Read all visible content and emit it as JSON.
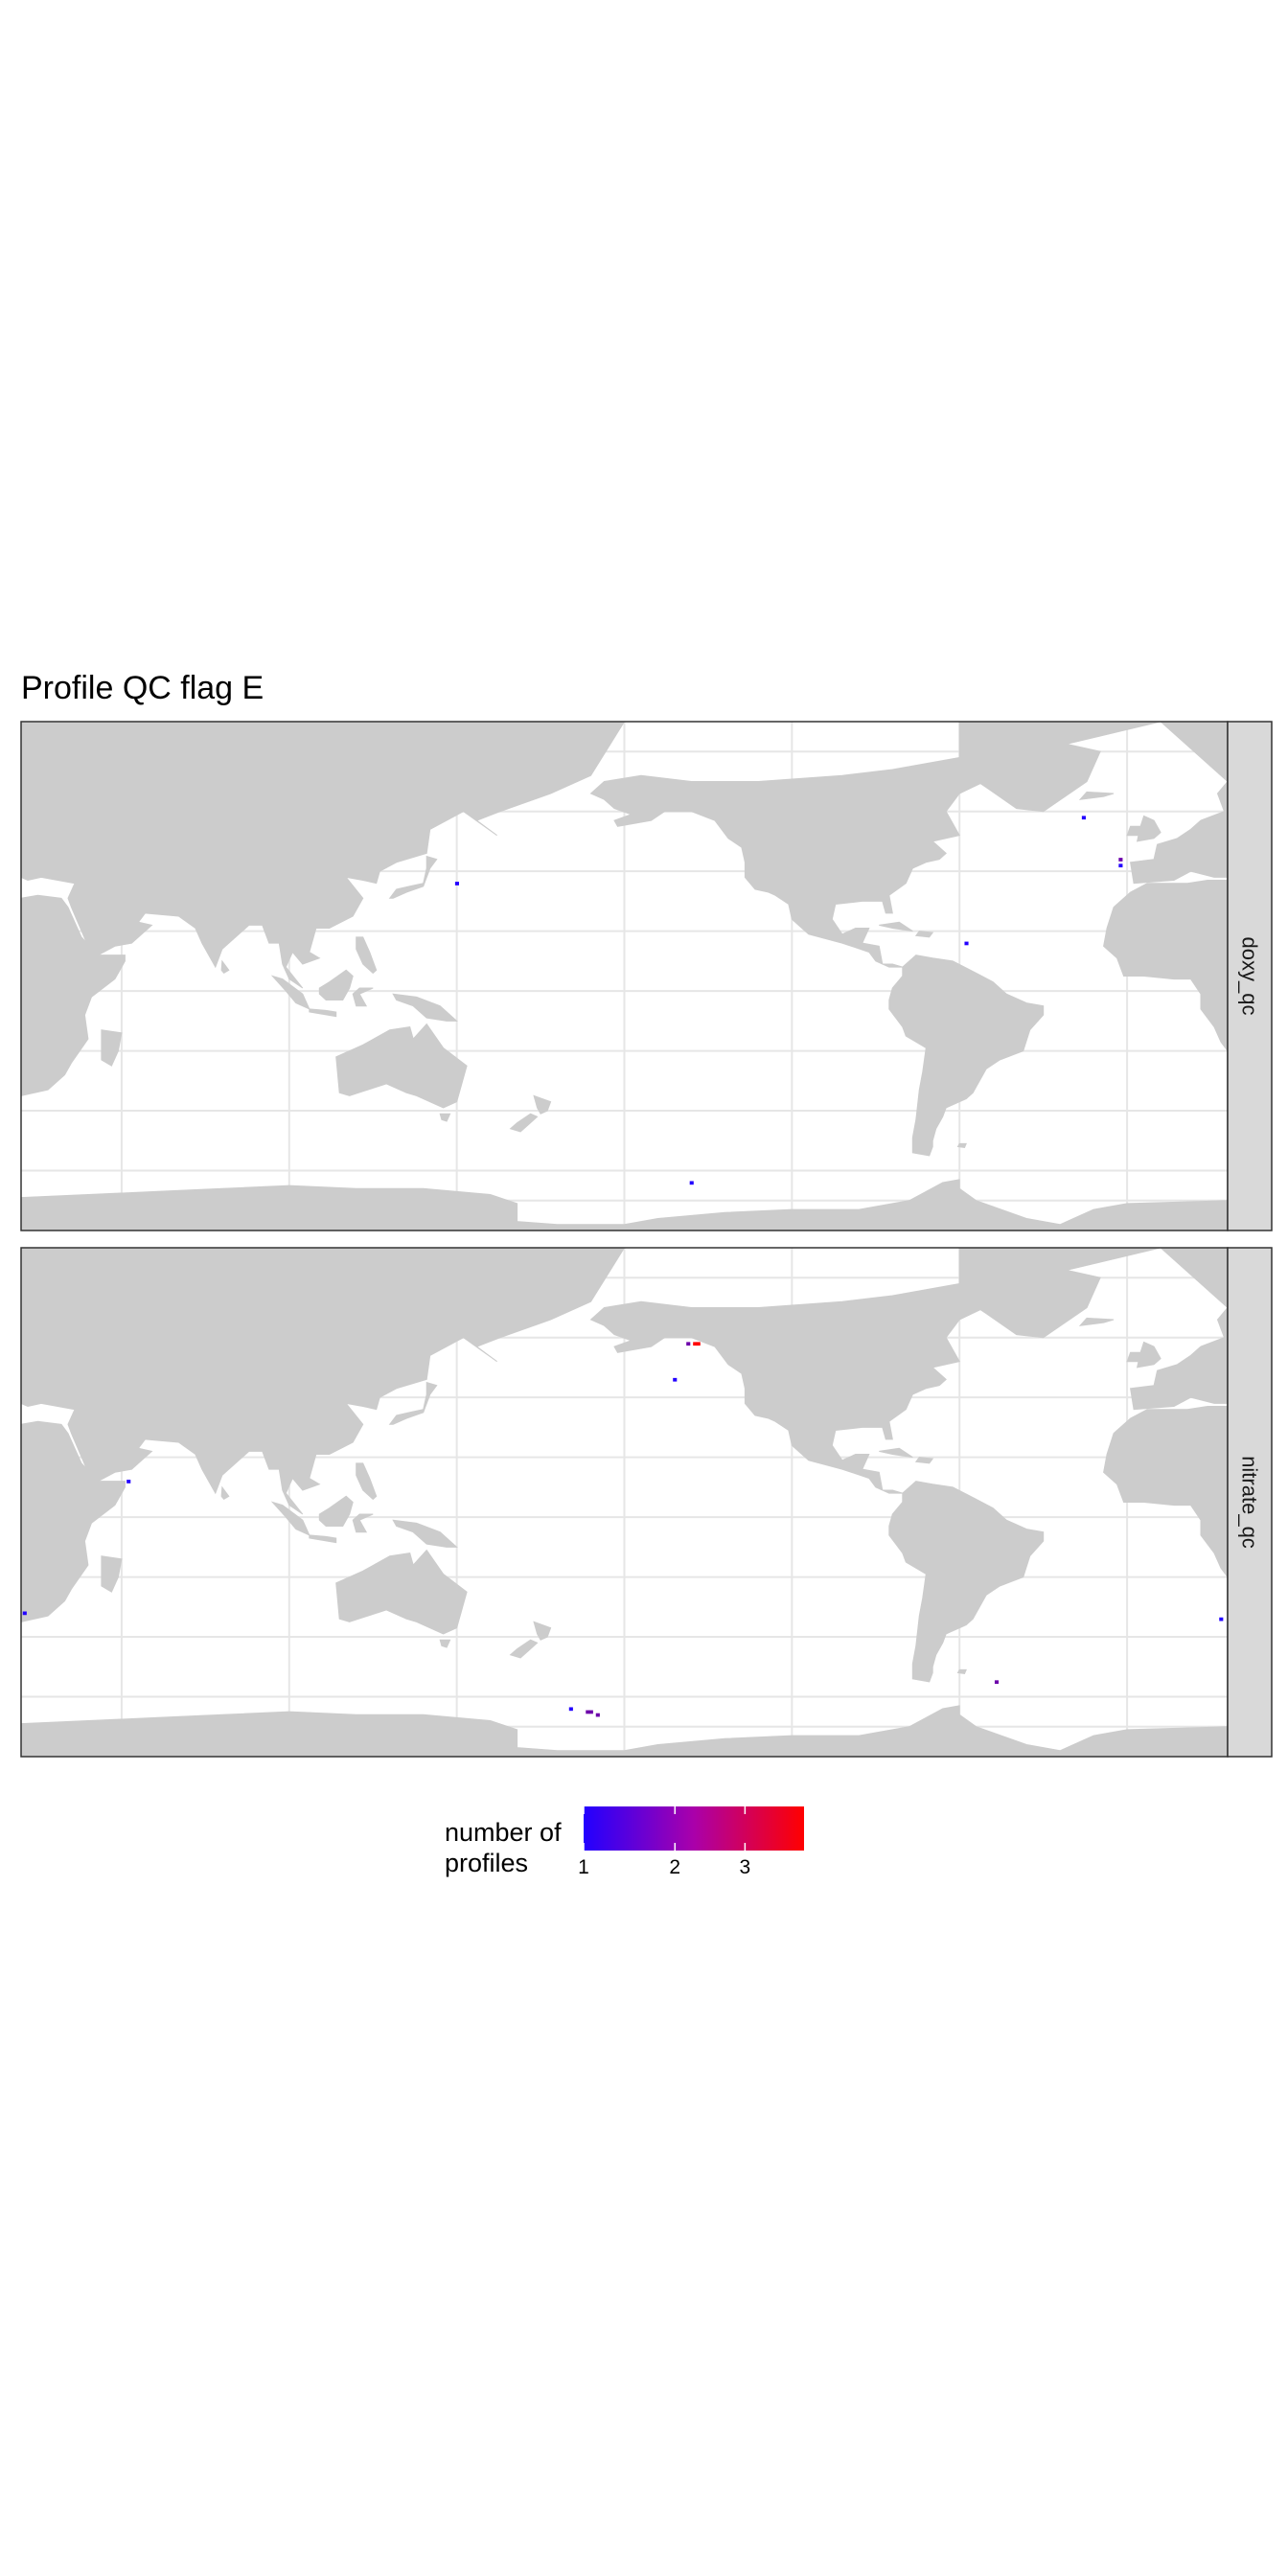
{
  "chart_data": {
    "type": "heatmap",
    "title": "Profile QC flag E",
    "subtitle": "",
    "xlabel": "",
    "ylabel": "",
    "x_range": [
      20,
      380
    ],
    "y_range": [
      -80,
      90
    ],
    "grid": true,
    "legend_position": "bottom",
    "legend": {
      "title_lines": [
        "number of",
        "profiles"
      ],
      "colors": [
        "#2200ff",
        "#ff0000"
      ],
      "min": 1,
      "max": 4,
      "ticks": [
        1,
        2,
        3
      ]
    },
    "panels": [
      {
        "strip_label": "doxy_qc",
        "cells": [
          {
            "lon": 150,
            "lat": 36,
            "count": 1
          },
          {
            "lon": 337,
            "lat": 58,
            "count": 1
          },
          {
            "lon": 348,
            "lat": 42,
            "count": 1
          },
          {
            "lon": 348,
            "lat": 44,
            "count": 2
          },
          {
            "lon": 302,
            "lat": 16,
            "count": 1
          },
          {
            "lon": 220,
            "lat": -64,
            "count": 1
          }
        ]
      },
      {
        "strip_label": "nitrate_qc",
        "cells": [
          {
            "lon": 219,
            "lat": 58,
            "count": 2
          },
          {
            "lon": 221,
            "lat": 58,
            "count": 4
          },
          {
            "lon": 222,
            "lat": 58,
            "count": 4
          },
          {
            "lon": 215,
            "lat": 46,
            "count": 1
          },
          {
            "lon": 52,
            "lat": 12,
            "count": 1
          },
          {
            "lon": 21,
            "lat": -32,
            "count": 1
          },
          {
            "lon": 378,
            "lat": -34,
            "count": 1
          },
          {
            "lon": 311,
            "lat": -55,
            "count": 2
          },
          {
            "lon": 184,
            "lat": -64,
            "count": 1
          },
          {
            "lon": 189,
            "lat": -65,
            "count": 2
          },
          {
            "lon": 190,
            "lat": -65,
            "count": 2
          },
          {
            "lon": 192,
            "lat": -66,
            "count": 2
          }
        ]
      }
    ]
  }
}
